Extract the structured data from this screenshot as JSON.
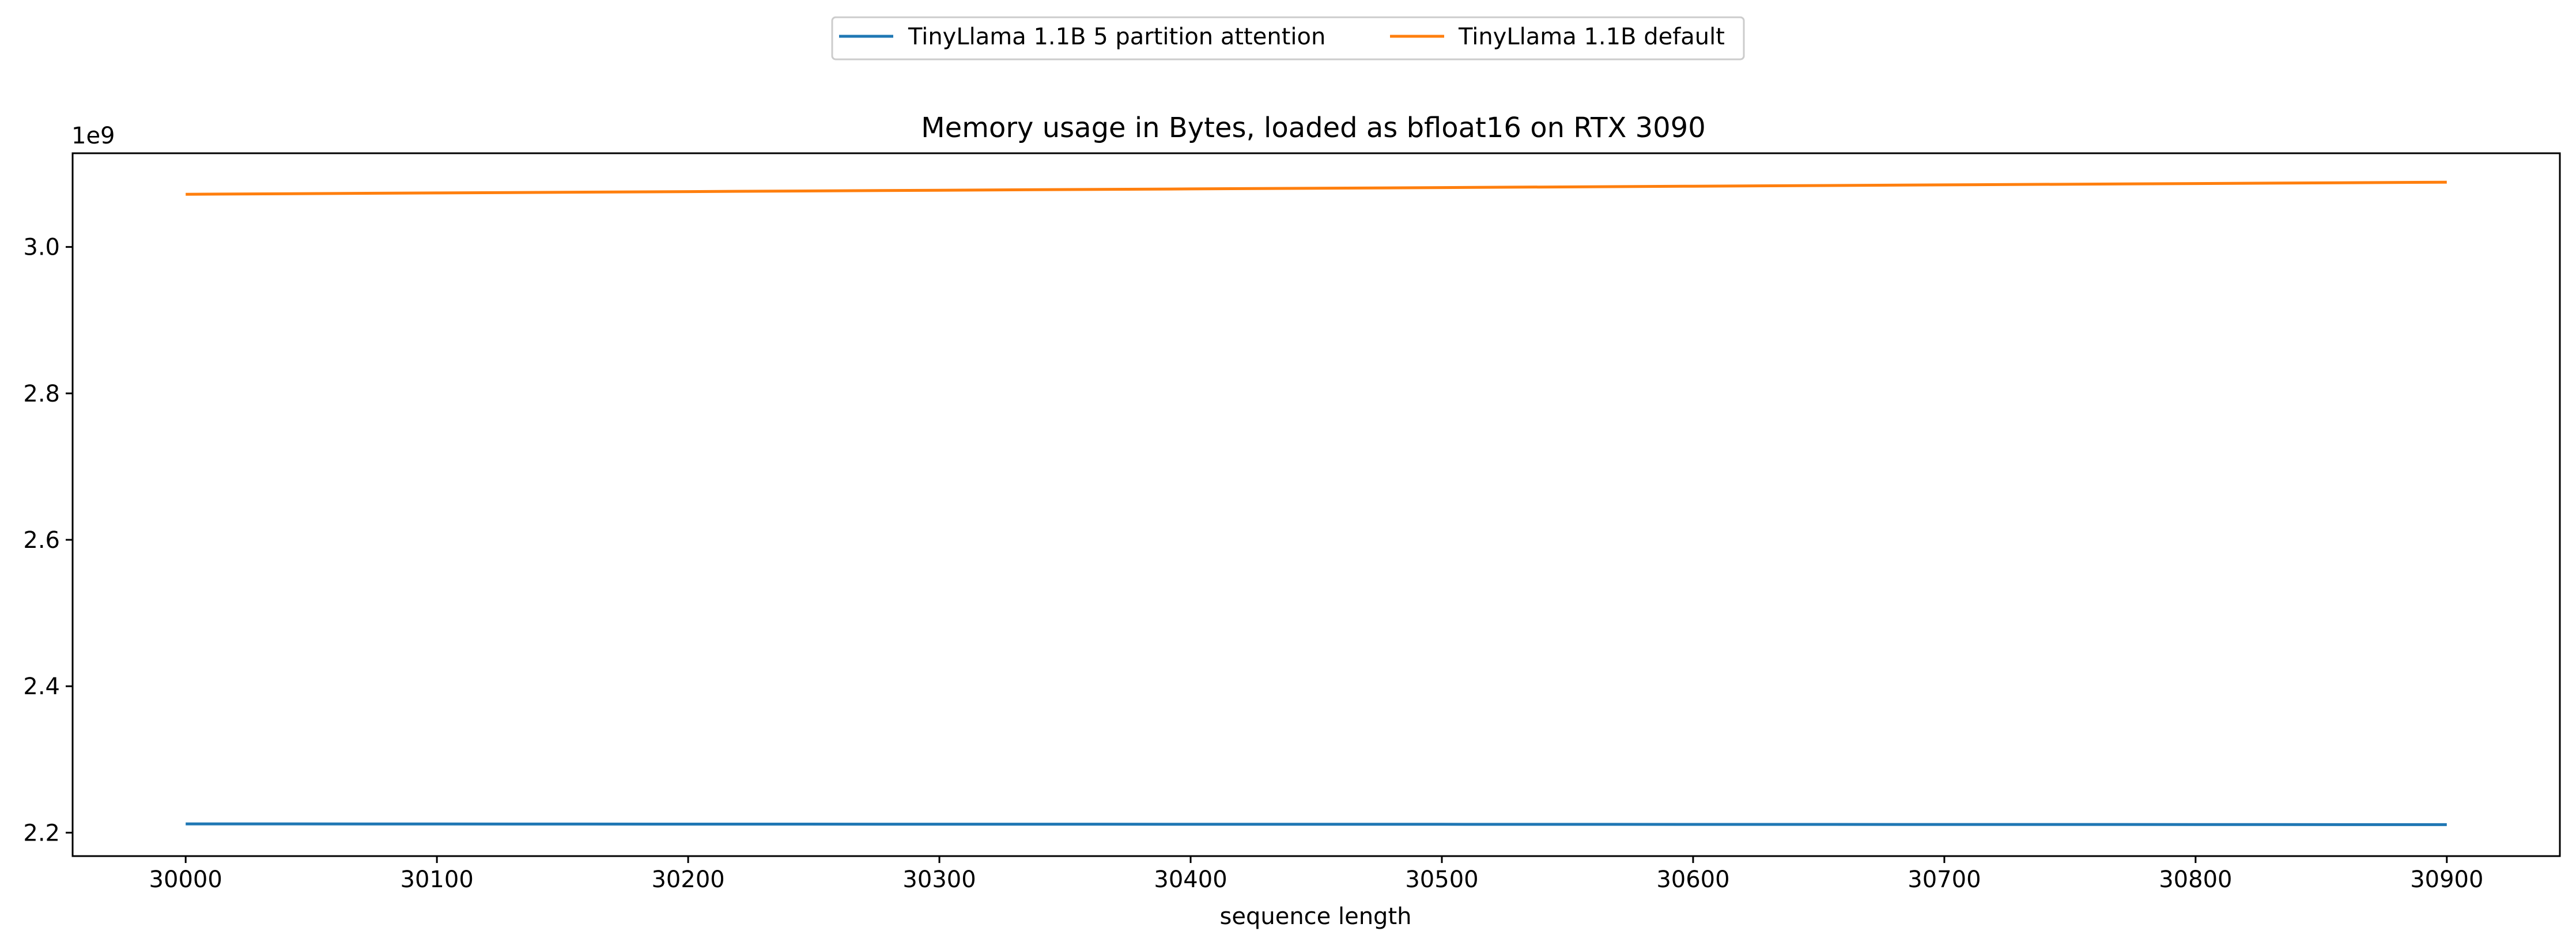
{
  "chart_data": {
    "type": "line",
    "title": "Memory usage in Bytes, loaded as bfloat16 on RTX 3090",
    "xlabel": "sequence length",
    "ylabel": "",
    "y_offset_text": "1e9",
    "xlim": [
      29955,
      30945
    ],
    "ylim": [
      2.168,
      3.128
    ],
    "x_ticks": [
      30000,
      30100,
      30200,
      30300,
      30400,
      30500,
      30600,
      30700,
      30800,
      30900
    ],
    "y_ticks": [
      2.2,
      2.4,
      2.6,
      2.8,
      3.0
    ],
    "x_tick_labels": [
      "30000",
      "30100",
      "30200",
      "30300",
      "30400",
      "30500",
      "30600",
      "30700",
      "30800",
      "30900"
    ],
    "y_tick_labels": [
      "2.2",
      "2.4",
      "2.6",
      "2.8",
      "3.0"
    ],
    "grid": false,
    "legend_position": "top-center, above plot",
    "x": [
      30000,
      30100,
      30200,
      30300,
      30400,
      30500,
      30600,
      30700,
      30800,
      30900
    ],
    "series": [
      {
        "name": "TinyLlama 1.1B 5 partition attention",
        "color": "#1f77b4",
        "values": [
          2.212,
          2.2118,
          2.2117,
          2.2116,
          2.2115,
          2.2114,
          2.2113,
          2.2112,
          2.2111,
          2.211
        ]
      },
      {
        "name": "TinyLlama 1.1B default",
        "color": "#ff7f0e",
        "values": [
          3.072,
          3.0738,
          3.0756,
          3.0775,
          3.0793,
          3.0811,
          3.083,
          3.0848,
          3.0866,
          3.0885
        ]
      }
    ]
  }
}
